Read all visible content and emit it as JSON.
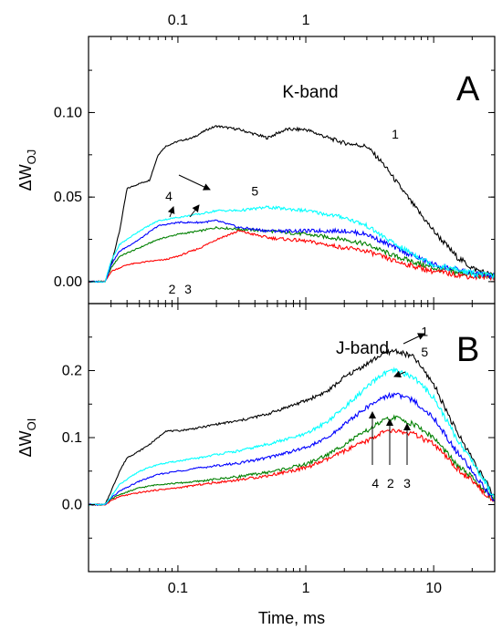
{
  "chart_data": {
    "type": "line",
    "x_scale": "log",
    "xlim": [
      0.02,
      30
    ],
    "xlabel": "Time, ms",
    "x_ticks_bottom": [
      {
        "value": 0.1,
        "label": "0.1"
      },
      {
        "value": 1,
        "label": "1"
      },
      {
        "value": 10,
        "label": "10"
      }
    ],
    "x_ticks_top": [
      {
        "value": 0.1,
        "label": "0.1"
      },
      {
        "value": 1,
        "label": "1"
      }
    ],
    "panels": [
      {
        "letter": "A",
        "band_label": "K-band",
        "ylabel_main": "ΔW",
        "ylabel_sub": "OJ",
        "ylim": [
          -0.013,
          0.145
        ],
        "y_ticks": [
          {
            "value": 0.0,
            "label": "0.00"
          },
          {
            "value": 0.05,
            "label": "0.05"
          },
          {
            "value": 0.1,
            "label": "0.10"
          }
        ],
        "series": [
          {
            "id": "1",
            "color": "#000000",
            "x": [
              0.02,
              0.027,
              0.03,
              0.035,
              0.04,
              0.05,
              0.06,
              0.07,
              0.08,
              0.1,
              0.13,
              0.17,
              0.2,
              0.3,
              0.5,
              0.7,
              1,
              1.5,
              2,
              3,
              4,
              5,
              7,
              10,
              15,
              20,
              30
            ],
            "y": [
              0.0,
              0.0,
              0.01,
              0.03,
              0.055,
              0.058,
              0.06,
              0.075,
              0.08,
              0.083,
              0.085,
              0.09,
              0.092,
              0.09,
              0.085,
              0.09,
              0.09,
              0.085,
              0.082,
              0.08,
              0.07,
              0.06,
              0.045,
              0.03,
              0.015,
              0.008,
              0.003
            ]
          },
          {
            "id": "2",
            "color": "#008000",
            "x": [
              0.02,
              0.027,
              0.03,
              0.035,
              0.05,
              0.07,
              0.1,
              0.15,
              0.2,
              0.3,
              0.5,
              1,
              2,
              3,
              5,
              10,
              20,
              30
            ],
            "y": [
              0.0,
              0.0,
              0.008,
              0.015,
              0.02,
              0.025,
              0.028,
              0.03,
              0.032,
              0.031,
              0.03,
              0.028,
              0.025,
              0.022,
              0.015,
              0.008,
              0.004,
              0.003
            ]
          },
          {
            "id": "3",
            "color": "#ff0000",
            "x": [
              0.02,
              0.027,
              0.03,
              0.04,
              0.06,
              0.08,
              0.1,
              0.15,
              0.2,
              0.3,
              0.5,
              1,
              2,
              3,
              5,
              10,
              20,
              30
            ],
            "y": [
              0.0,
              0.0,
              0.006,
              0.01,
              0.012,
              0.013,
              0.015,
              0.02,
              0.025,
              0.03,
              0.026,
              0.024,
              0.02,
              0.018,
              0.012,
              0.006,
              0.003,
              0.003
            ]
          },
          {
            "id": "4",
            "color": "#0000ff",
            "x": [
              0.02,
              0.027,
              0.03,
              0.035,
              0.05,
              0.07,
              0.1,
              0.15,
              0.2,
              0.3,
              0.5,
              1,
              2,
              3,
              5,
              10,
              20,
              30
            ],
            "y": [
              0.0,
              0.0,
              0.01,
              0.018,
              0.025,
              0.033,
              0.035,
              0.035,
              0.036,
              0.032,
              0.03,
              0.03,
              0.03,
              0.028,
              0.02,
              0.01,
              0.005,
              0.003
            ]
          },
          {
            "id": "5",
            "color": "#00ffff",
            "x": [
              0.02,
              0.027,
              0.03,
              0.035,
              0.05,
              0.07,
              0.1,
              0.15,
              0.2,
              0.3,
              0.5,
              1,
              2,
              3,
              5,
              10,
              20,
              30
            ],
            "y": [
              0.0,
              0.0,
              0.012,
              0.022,
              0.03,
              0.036,
              0.038,
              0.04,
              0.042,
              0.042,
              0.044,
              0.042,
              0.038,
              0.033,
              0.022,
              0.01,
              0.005,
              0.003
            ]
          }
        ],
        "annotations": [
          {
            "text": "1",
            "x": 5.0,
            "y": 0.0845
          },
          {
            "text": "4",
            "x": 0.085,
            "y": 0.048
          },
          {
            "text": "5",
            "x": 0.4,
            "y": 0.051
          },
          {
            "text": "2",
            "x": 0.09,
            "y": -0.007
          },
          {
            "text": "3",
            "x": 0.12,
            "y": -0.007
          }
        ]
      },
      {
        "letter": "B",
        "band_label": "J-band",
        "ylabel_main": "ΔW",
        "ylabel_sub": "OI",
        "ylim": [
          -0.1,
          0.3
        ],
        "y_ticks": [
          {
            "value": 0.0,
            "label": "0.0"
          },
          {
            "value": 0.1,
            "label": "0.1"
          },
          {
            "value": 0.2,
            "label": "0.2"
          }
        ],
        "series": [
          {
            "id": "1",
            "color": "#000000",
            "x": [
              0.02,
              0.027,
              0.03,
              0.035,
              0.04,
              0.05,
              0.06,
              0.07,
              0.08,
              0.1,
              0.15,
              0.2,
              0.3,
              0.5,
              0.7,
              1,
              1.5,
              2,
              3,
              4,
              5,
              7,
              10,
              15,
              20,
              30
            ],
            "y": [
              0.0,
              0.0,
              0.02,
              0.05,
              0.07,
              0.08,
              0.09,
              0.1,
              0.11,
              0.11,
              0.115,
              0.12,
              0.125,
              0.135,
              0.145,
              0.155,
              0.17,
              0.19,
              0.21,
              0.225,
              0.23,
              0.22,
              0.18,
              0.11,
              0.07,
              0.01
            ]
          },
          {
            "id": "2",
            "color": "#008000",
            "x": [
              0.02,
              0.027,
              0.03,
              0.035,
              0.05,
              0.07,
              0.1,
              0.15,
              0.2,
              0.3,
              0.5,
              1,
              1.5,
              2,
              3,
              4,
              5,
              7,
              10,
              15,
              20,
              30
            ],
            "y": [
              0.0,
              0.0,
              0.008,
              0.015,
              0.025,
              0.03,
              0.032,
              0.035,
              0.038,
              0.042,
              0.048,
              0.06,
              0.075,
              0.09,
              0.11,
              0.125,
              0.13,
              0.12,
              0.1,
              0.06,
              0.04,
              0.005
            ]
          },
          {
            "id": "3",
            "color": "#ff0000",
            "x": [
              0.02,
              0.027,
              0.03,
              0.035,
              0.05,
              0.07,
              0.1,
              0.15,
              0.2,
              0.3,
              0.5,
              1,
              1.5,
              2,
              3,
              4,
              5,
              7,
              10,
              15,
              20,
              30
            ],
            "y": [
              0.0,
              0.0,
              0.006,
              0.012,
              0.018,
              0.022,
              0.025,
              0.03,
              0.033,
              0.037,
              0.043,
              0.055,
              0.068,
              0.08,
              0.095,
              0.108,
              0.11,
              0.105,
              0.09,
              0.055,
              0.035,
              0.005
            ]
          },
          {
            "id": "4",
            "color": "#0000ff",
            "x": [
              0.02,
              0.027,
              0.03,
              0.035,
              0.05,
              0.07,
              0.1,
              0.15,
              0.2,
              0.3,
              0.5,
              1,
              1.5,
              2,
              3,
              4,
              5,
              7,
              10,
              15,
              20,
              30
            ],
            "y": [
              0.0,
              0.0,
              0.01,
              0.02,
              0.035,
              0.045,
              0.05,
              0.055,
              0.058,
              0.062,
              0.07,
              0.085,
              0.1,
              0.12,
              0.145,
              0.16,
              0.165,
              0.155,
              0.13,
              0.08,
              0.05,
              0.005
            ]
          },
          {
            "id": "5",
            "color": "#00ffff",
            "x": [
              0.02,
              0.027,
              0.03,
              0.035,
              0.05,
              0.07,
              0.1,
              0.15,
              0.2,
              0.3,
              0.5,
              1,
              1.5,
              2,
              3,
              4,
              5,
              7,
              10,
              15,
              20,
              30
            ],
            "y": [
              0.0,
              0.0,
              0.012,
              0.03,
              0.05,
              0.06,
              0.065,
              0.07,
              0.075,
              0.08,
              0.09,
              0.105,
              0.125,
              0.145,
              0.175,
              0.195,
              0.2,
              0.19,
              0.16,
              0.1,
              0.065,
              0.01
            ]
          }
        ],
        "annotations": [
          {
            "text": "1",
            "x": 8.5,
            "y": 0.252
          },
          {
            "text": "5",
            "x": 8.5,
            "y": 0.221
          },
          {
            "text": "4",
            "x": 3.5,
            "y": 0.025
          },
          {
            "text": "2",
            "x": 4.6,
            "y": 0.025
          },
          {
            "text": "3",
            "x": 6.2,
            "y": 0.025
          }
        ]
      }
    ]
  }
}
